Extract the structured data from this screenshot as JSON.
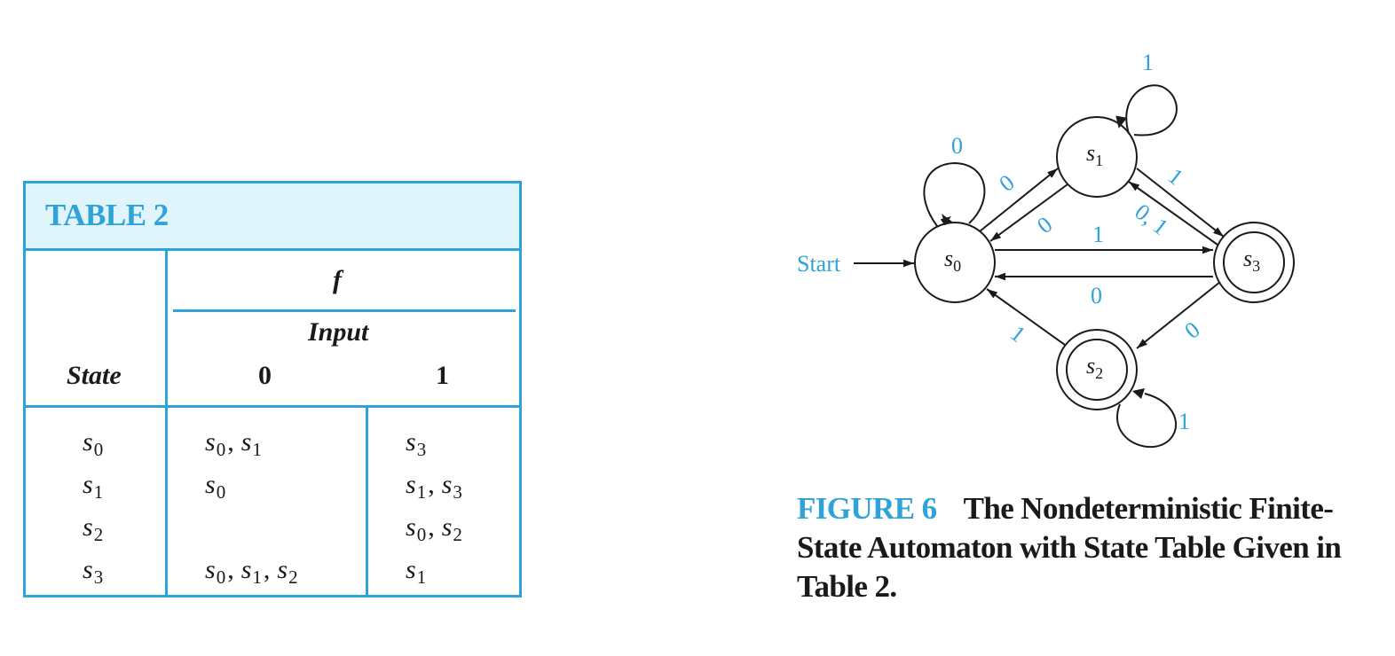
{
  "table": {
    "caption": "TABLE 2",
    "function_label": "f",
    "input_label": "Input",
    "state_label": "State",
    "input_0": "0",
    "input_1": "1",
    "rows": [
      {
        "state": "s0",
        "on_0": [
          "s0",
          "s1"
        ],
        "on_1": [
          "s3"
        ]
      },
      {
        "state": "s1",
        "on_0": [
          "s0"
        ],
        "on_1": [
          "s1",
          "s3"
        ]
      },
      {
        "state": "s2",
        "on_0": [],
        "on_1": [
          "s0",
          "s2"
        ]
      },
      {
        "state": "s3",
        "on_0": [
          "s0",
          "s1",
          "s2"
        ],
        "on_1": [
          "s1"
        ]
      }
    ]
  },
  "figure": {
    "start_label": "Start",
    "states": [
      {
        "id": "s0",
        "final": false
      },
      {
        "id": "s1",
        "final": false
      },
      {
        "id": "s2",
        "final": true
      },
      {
        "id": "s3",
        "final": true
      }
    ],
    "edge_labels": {
      "s0_s0": "0",
      "s0_s1": "0",
      "s1_s0": "0",
      "s1_s1": "1",
      "s1_s3": "1",
      "s3_s1": "0, 1",
      "s0_s3": "1",
      "s3_s0": "0",
      "s3_s2": "0",
      "s2_s0": "1",
      "s2_s2": "1"
    },
    "caption_label": "FIGURE 6",
    "caption_text": "The Nondeterministic Finite-State Automaton with State Table Given in Table 2."
  },
  "colors": {
    "accent": "#2ea3d9",
    "header_fill": "#e0f4fb",
    "ink": "#1a1a1a"
  }
}
